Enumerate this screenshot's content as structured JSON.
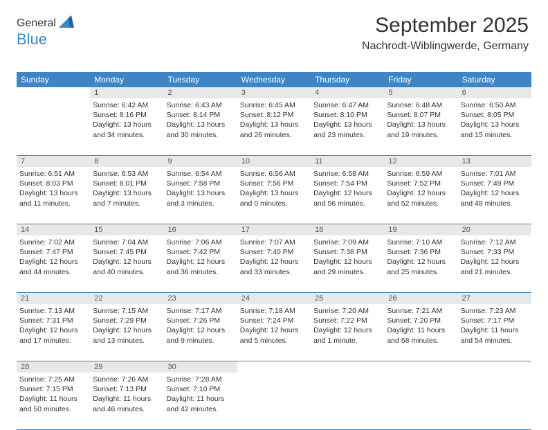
{
  "logo": {
    "general": "General",
    "blue": "Blue"
  },
  "header": {
    "month": "September 2025",
    "location": "Nachrodt-Wiblingwerde, Germany"
  },
  "colors": {
    "accent": "#3d85c6",
    "daybar": "#e8e8e8",
    "text": "#333333"
  },
  "weekdays": [
    "Sunday",
    "Monday",
    "Tuesday",
    "Wednesday",
    "Thursday",
    "Friday",
    "Saturday"
  ],
  "weeks": [
    {
      "numbers": [
        "",
        "1",
        "2",
        "3",
        "4",
        "5",
        "6"
      ],
      "days": [
        null,
        {
          "sunrise": "Sunrise: 6:42 AM",
          "sunset": "Sunset: 8:16 PM",
          "daylight": "Daylight: 13 hours and 34 minutes."
        },
        {
          "sunrise": "Sunrise: 6:43 AM",
          "sunset": "Sunset: 8:14 PM",
          "daylight": "Daylight: 13 hours and 30 minutes."
        },
        {
          "sunrise": "Sunrise: 6:45 AM",
          "sunset": "Sunset: 8:12 PM",
          "daylight": "Daylight: 13 hours and 26 minutes."
        },
        {
          "sunrise": "Sunrise: 6:47 AM",
          "sunset": "Sunset: 8:10 PM",
          "daylight": "Daylight: 13 hours and 23 minutes."
        },
        {
          "sunrise": "Sunrise: 6:48 AM",
          "sunset": "Sunset: 8:07 PM",
          "daylight": "Daylight: 13 hours and 19 minutes."
        },
        {
          "sunrise": "Sunrise: 6:50 AM",
          "sunset": "Sunset: 8:05 PM",
          "daylight": "Daylight: 13 hours and 15 minutes."
        }
      ]
    },
    {
      "numbers": [
        "7",
        "8",
        "9",
        "10",
        "11",
        "12",
        "13"
      ],
      "days": [
        {
          "sunrise": "Sunrise: 6:51 AM",
          "sunset": "Sunset: 8:03 PM",
          "daylight": "Daylight: 13 hours and 11 minutes."
        },
        {
          "sunrise": "Sunrise: 6:53 AM",
          "sunset": "Sunset: 8:01 PM",
          "daylight": "Daylight: 13 hours and 7 minutes."
        },
        {
          "sunrise": "Sunrise: 6:54 AM",
          "sunset": "Sunset: 7:58 PM",
          "daylight": "Daylight: 13 hours and 3 minutes."
        },
        {
          "sunrise": "Sunrise: 6:56 AM",
          "sunset": "Sunset: 7:56 PM",
          "daylight": "Daylight: 13 hours and 0 minutes."
        },
        {
          "sunrise": "Sunrise: 6:58 AM",
          "sunset": "Sunset: 7:54 PM",
          "daylight": "Daylight: 12 hours and 56 minutes."
        },
        {
          "sunrise": "Sunrise: 6:59 AM",
          "sunset": "Sunset: 7:52 PM",
          "daylight": "Daylight: 12 hours and 52 minutes."
        },
        {
          "sunrise": "Sunrise: 7:01 AM",
          "sunset": "Sunset: 7:49 PM",
          "daylight": "Daylight: 12 hours and 48 minutes."
        }
      ]
    },
    {
      "numbers": [
        "14",
        "15",
        "16",
        "17",
        "18",
        "19",
        "20"
      ],
      "days": [
        {
          "sunrise": "Sunrise: 7:02 AM",
          "sunset": "Sunset: 7:47 PM",
          "daylight": "Daylight: 12 hours and 44 minutes."
        },
        {
          "sunrise": "Sunrise: 7:04 AM",
          "sunset": "Sunset: 7:45 PM",
          "daylight": "Daylight: 12 hours and 40 minutes."
        },
        {
          "sunrise": "Sunrise: 7:06 AM",
          "sunset": "Sunset: 7:42 PM",
          "daylight": "Daylight: 12 hours and 36 minutes."
        },
        {
          "sunrise": "Sunrise: 7:07 AM",
          "sunset": "Sunset: 7:40 PM",
          "daylight": "Daylight: 12 hours and 33 minutes."
        },
        {
          "sunrise": "Sunrise: 7:09 AM",
          "sunset": "Sunset: 7:38 PM",
          "daylight": "Daylight: 12 hours and 29 minutes."
        },
        {
          "sunrise": "Sunrise: 7:10 AM",
          "sunset": "Sunset: 7:36 PM",
          "daylight": "Daylight: 12 hours and 25 minutes."
        },
        {
          "sunrise": "Sunrise: 7:12 AM",
          "sunset": "Sunset: 7:33 PM",
          "daylight": "Daylight: 12 hours and 21 minutes."
        }
      ]
    },
    {
      "numbers": [
        "21",
        "22",
        "23",
        "24",
        "25",
        "26",
        "27"
      ],
      "days": [
        {
          "sunrise": "Sunrise: 7:13 AM",
          "sunset": "Sunset: 7:31 PM",
          "daylight": "Daylight: 12 hours and 17 minutes."
        },
        {
          "sunrise": "Sunrise: 7:15 AM",
          "sunset": "Sunset: 7:29 PM",
          "daylight": "Daylight: 12 hours and 13 minutes."
        },
        {
          "sunrise": "Sunrise: 7:17 AM",
          "sunset": "Sunset: 7:26 PM",
          "daylight": "Daylight: 12 hours and 9 minutes."
        },
        {
          "sunrise": "Sunrise: 7:18 AM",
          "sunset": "Sunset: 7:24 PM",
          "daylight": "Daylight: 12 hours and 5 minutes."
        },
        {
          "sunrise": "Sunrise: 7:20 AM",
          "sunset": "Sunset: 7:22 PM",
          "daylight": "Daylight: 12 hours and 1 minute."
        },
        {
          "sunrise": "Sunrise: 7:21 AM",
          "sunset": "Sunset: 7:20 PM",
          "daylight": "Daylight: 11 hours and 58 minutes."
        },
        {
          "sunrise": "Sunrise: 7:23 AM",
          "sunset": "Sunset: 7:17 PM",
          "daylight": "Daylight: 11 hours and 54 minutes."
        }
      ]
    },
    {
      "numbers": [
        "28",
        "29",
        "30",
        "",
        "",
        "",
        ""
      ],
      "days": [
        {
          "sunrise": "Sunrise: 7:25 AM",
          "sunset": "Sunset: 7:15 PM",
          "daylight": "Daylight: 11 hours and 50 minutes."
        },
        {
          "sunrise": "Sunrise: 7:26 AM",
          "sunset": "Sunset: 7:13 PM",
          "daylight": "Daylight: 11 hours and 46 minutes."
        },
        {
          "sunrise": "Sunrise: 7:28 AM",
          "sunset": "Sunset: 7:10 PM",
          "daylight": "Daylight: 11 hours and 42 minutes."
        },
        null,
        null,
        null,
        null
      ]
    }
  ]
}
